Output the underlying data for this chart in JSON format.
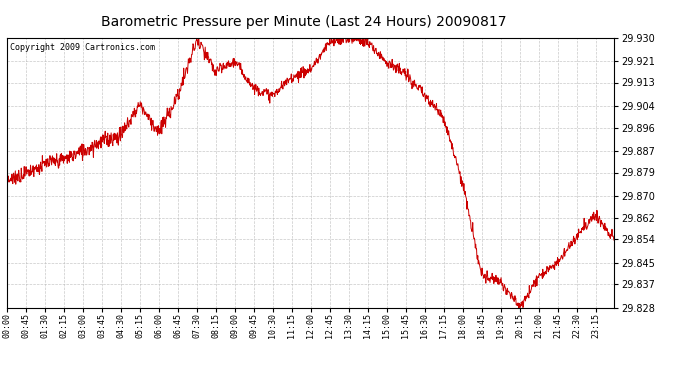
{
  "title": "Barometric Pressure per Minute (Last 24 Hours) 20090817",
  "copyright": "Copyright 2009 Cartronics.com",
  "line_color": "#cc0000",
  "bg_color": "#ffffff",
  "plot_bg_color": "#ffffff",
  "grid_color": "#bbbbbb",
  "ylim": [
    29.828,
    29.93
  ],
  "yticks": [
    29.828,
    29.837,
    29.845,
    29.854,
    29.862,
    29.87,
    29.879,
    29.887,
    29.896,
    29.904,
    29.913,
    29.921,
    29.93
  ],
  "xtick_labels": [
    "00:00",
    "00:45",
    "01:30",
    "02:15",
    "03:00",
    "03:45",
    "04:30",
    "05:15",
    "06:00",
    "06:45",
    "07:30",
    "08:15",
    "09:00",
    "09:45",
    "10:30",
    "11:15",
    "12:00",
    "12:45",
    "13:30",
    "14:15",
    "15:00",
    "15:45",
    "16:30",
    "17:15",
    "18:00",
    "18:45",
    "19:30",
    "20:15",
    "21:00",
    "21:45",
    "22:30",
    "23:15"
  ],
  "keypoints_x": [
    0,
    45,
    90,
    135,
    180,
    225,
    270,
    315,
    360,
    405,
    450,
    495,
    540,
    585,
    630,
    675,
    720,
    765,
    810,
    855,
    900,
    945,
    990,
    1035,
    1080,
    1125,
    1170,
    1215,
    1260,
    1305,
    1350,
    1395,
    1439
  ],
  "keypoints_y": [
    29.876,
    29.879,
    29.882,
    29.884,
    29.887,
    29.891,
    29.893,
    29.905,
    29.894,
    29.908,
    29.929,
    29.917,
    29.921,
    29.911,
    29.908,
    29.915,
    29.918,
    29.928,
    29.93,
    29.928,
    29.921,
    29.916,
    29.908,
    29.9,
    29.875,
    29.84,
    29.838,
    29.828,
    29.84,
    29.845,
    29.855,
    29.863,
    29.854
  ]
}
